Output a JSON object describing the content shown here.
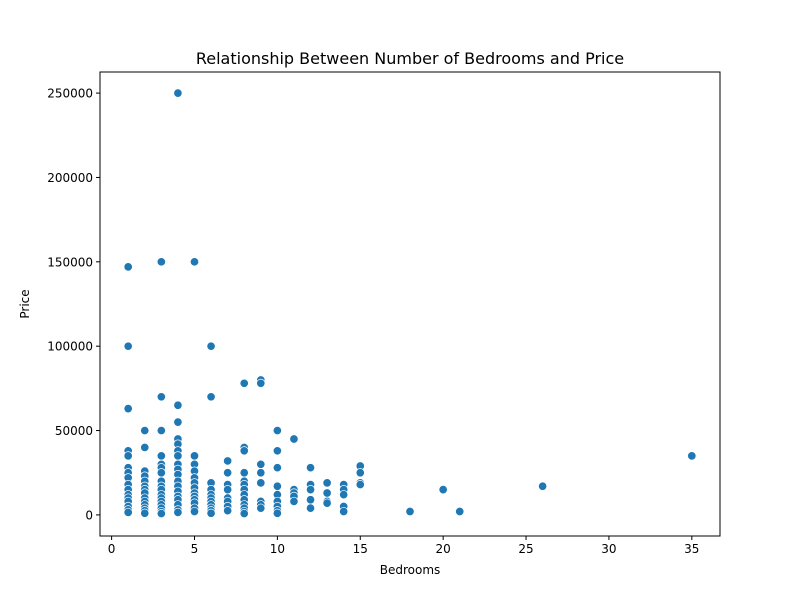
{
  "chart_data": {
    "type": "scatter",
    "title": "Relationship Between Number of Bedrooms and Price",
    "xlabel": "Bedrooms",
    "ylabel": "Price",
    "xlim": [
      -0.7,
      36.7
    ],
    "ylim": [
      -12500,
      262500
    ],
    "xticks": [
      0,
      5,
      10,
      15,
      20,
      25,
      30,
      35
    ],
    "yticks": [
      0,
      50000,
      100000,
      150000,
      200000,
      250000
    ],
    "grid": false,
    "color": "#1f77b4",
    "points": [
      [
        1,
        147000
      ],
      [
        1,
        100000
      ],
      [
        1,
        63000
      ],
      [
        1,
        38000
      ],
      [
        1,
        35000
      ],
      [
        1,
        28000
      ],
      [
        1,
        25000
      ],
      [
        1,
        22000
      ],
      [
        1,
        18000
      ],
      [
        1,
        15000
      ],
      [
        1,
        12000
      ],
      [
        1,
        10000
      ],
      [
        1,
        8000
      ],
      [
        1,
        5000
      ],
      [
        1,
        3000
      ],
      [
        1,
        1500
      ],
      [
        2,
        50000
      ],
      [
        2,
        40000
      ],
      [
        2,
        26000
      ],
      [
        2,
        23000
      ],
      [
        2,
        20000
      ],
      [
        2,
        17000
      ],
      [
        2,
        15000
      ],
      [
        2,
        13000
      ],
      [
        2,
        10000
      ],
      [
        2,
        8000
      ],
      [
        2,
        6000
      ],
      [
        2,
        4000
      ],
      [
        2,
        2500
      ],
      [
        2,
        1000
      ],
      [
        3,
        150000
      ],
      [
        3,
        70000
      ],
      [
        3,
        50000
      ],
      [
        3,
        35000
      ],
      [
        3,
        30000
      ],
      [
        3,
        28000
      ],
      [
        3,
        25000
      ],
      [
        3,
        20000
      ],
      [
        3,
        17000
      ],
      [
        3,
        15000
      ],
      [
        3,
        12000
      ],
      [
        3,
        10000
      ],
      [
        3,
        8000
      ],
      [
        3,
        6000
      ],
      [
        3,
        4000
      ],
      [
        3,
        2000
      ],
      [
        3,
        800
      ],
      [
        4,
        250000
      ],
      [
        4,
        65000
      ],
      [
        4,
        55000
      ],
      [
        4,
        45000
      ],
      [
        4,
        42000
      ],
      [
        4,
        38000
      ],
      [
        4,
        35000
      ],
      [
        4,
        30000
      ],
      [
        4,
        27000
      ],
      [
        4,
        24000
      ],
      [
        4,
        20000
      ],
      [
        4,
        17000
      ],
      [
        4,
        14000
      ],
      [
        4,
        11000
      ],
      [
        4,
        9000
      ],
      [
        4,
        6000
      ],
      [
        4,
        3000
      ],
      [
        4,
        1500
      ],
      [
        5,
        150000
      ],
      [
        5,
        35000
      ],
      [
        5,
        30000
      ],
      [
        5,
        26000
      ],
      [
        5,
        22000
      ],
      [
        5,
        19000
      ],
      [
        5,
        16000
      ],
      [
        5,
        13000
      ],
      [
        5,
        11000
      ],
      [
        5,
        9000
      ],
      [
        5,
        7000
      ],
      [
        5,
        4000
      ],
      [
        5,
        2000
      ],
      [
        6,
        100000
      ],
      [
        6,
        70000
      ],
      [
        6,
        19000
      ],
      [
        6,
        15000
      ],
      [
        6,
        12000
      ],
      [
        6,
        10000
      ],
      [
        6,
        8000
      ],
      [
        6,
        6000
      ],
      [
        6,
        4000
      ],
      [
        6,
        2500
      ],
      [
        6,
        1000
      ],
      [
        7,
        32000
      ],
      [
        7,
        25000
      ],
      [
        7,
        18000
      ],
      [
        7,
        15000
      ],
      [
        7,
        10000
      ],
      [
        7,
        8000
      ],
      [
        7,
        5000
      ],
      [
        7,
        2500
      ],
      [
        8,
        78000
      ],
      [
        8,
        40000
      ],
      [
        8,
        38000
      ],
      [
        8,
        25000
      ],
      [
        8,
        20000
      ],
      [
        8,
        18000
      ],
      [
        8,
        15000
      ],
      [
        8,
        12000
      ],
      [
        8,
        9000
      ],
      [
        8,
        6000
      ],
      [
        8,
        4000
      ],
      [
        8,
        2000
      ],
      [
        8,
        800
      ],
      [
        9,
        80000
      ],
      [
        9,
        78000
      ],
      [
        9,
        30000
      ],
      [
        9,
        25000
      ],
      [
        9,
        19000
      ],
      [
        9,
        8000
      ],
      [
        9,
        6000
      ],
      [
        9,
        4000
      ],
      [
        10,
        50000
      ],
      [
        10,
        38000
      ],
      [
        10,
        28000
      ],
      [
        10,
        17000
      ],
      [
        10,
        12000
      ],
      [
        10,
        8000
      ],
      [
        10,
        5000
      ],
      [
        10,
        2500
      ],
      [
        10,
        1000
      ],
      [
        11,
        45000
      ],
      [
        11,
        15000
      ],
      [
        11,
        13000
      ],
      [
        11,
        11000
      ],
      [
        11,
        8000
      ],
      [
        12,
        28000
      ],
      [
        12,
        18000
      ],
      [
        12,
        15000
      ],
      [
        12,
        9000
      ],
      [
        12,
        4000
      ],
      [
        13,
        19000
      ],
      [
        13,
        13000
      ],
      [
        13,
        8000
      ],
      [
        13,
        7000
      ],
      [
        14,
        18000
      ],
      [
        14,
        15000
      ],
      [
        14,
        12000
      ],
      [
        14,
        5000
      ],
      [
        14,
        2000
      ],
      [
        15,
        29000
      ],
      [
        15,
        25000
      ],
      [
        15,
        19000
      ],
      [
        15,
        18000
      ],
      [
        18,
        2000
      ],
      [
        20,
        15000
      ],
      [
        21,
        2000
      ],
      [
        26,
        17000
      ],
      [
        35,
        35000
      ]
    ]
  }
}
